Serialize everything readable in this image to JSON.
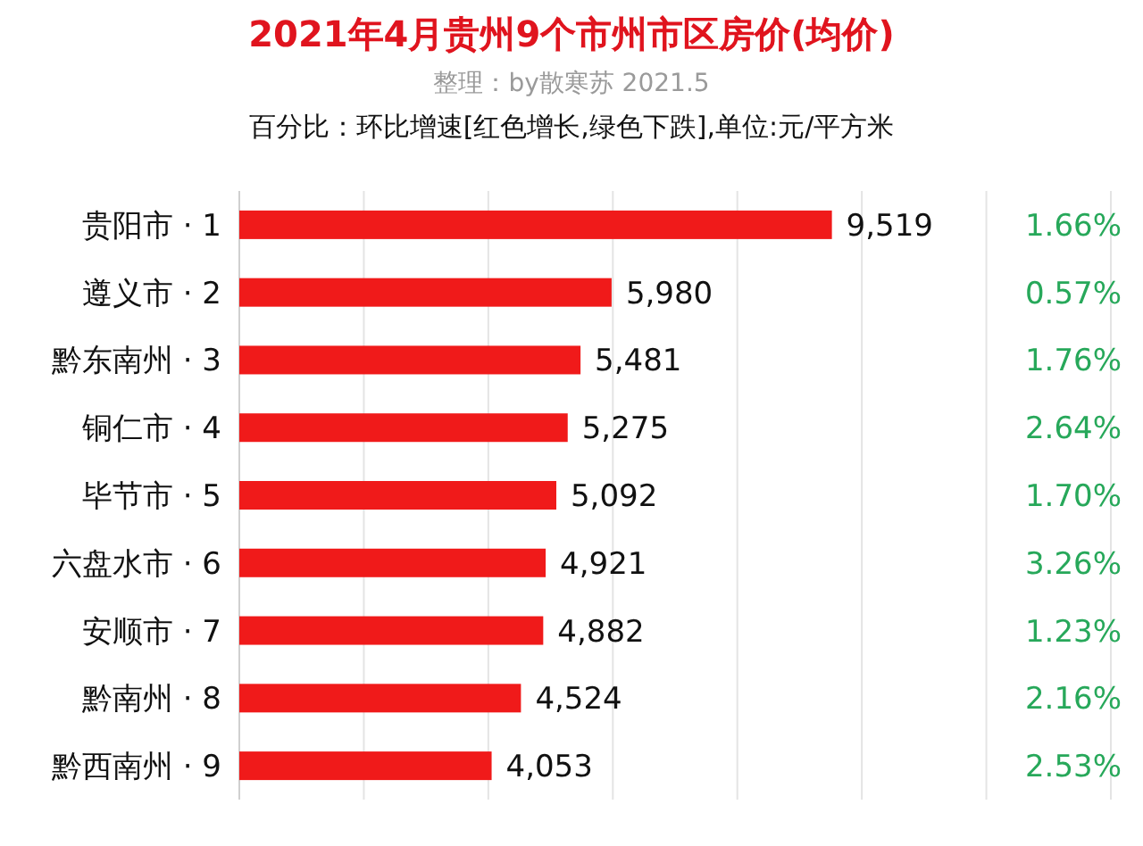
{
  "chart_data": {
    "type": "bar",
    "orientation": "horizontal",
    "title": "2021年4月贵州9个市州市区房价(均价)",
    "subtitle": "整理：by散寒苏 2021.5",
    "categories": [
      "贵阳市 · 1",
      "遵义市 · 2",
      "黔东南州 · 3",
      "铜仁市 · 4",
      "毕节市 · 5",
      "六盘水市 · 6",
      "安顺市 · 7",
      "黔南州 · 8",
      "黔西南州 · 9"
    ],
    "values": [
      9519,
      5980,
      5481,
      5275,
      5092,
      4921,
      4882,
      4524,
      4053
    ],
    "value_labels": [
      "9,519",
      "5,980",
      "5,481",
      "5,275",
      "5,092",
      "4,921",
      "4,882",
      "4,524",
      "4,053"
    ],
    "color": "#f01a1a",
    "xlim": [
      0,
      14000
    ],
    "xticks": [
      {
        "value": 0,
        "label": null
      },
      {
        "value": 2000,
        "label": null
      },
      {
        "value": 4000,
        "label": null
      },
      {
        "value": 6000,
        "label": null
      },
      {
        "value": 8000,
        "label": null
      },
      {
        "value": 10000,
        "label": null
      },
      {
        "value": 12000,
        "label": null
      },
      {
        "value": 14000,
        "label": null
      }
    ],
    "grid": "x",
    "tick_labels": "y",
    "annotations": [
      "百分比：环比增速[红色增长,绿色下跌],单位:元/平方米",
      "1.66%",
      "0.57%",
      "1.76%",
      "2.64%",
      "1.70%",
      "3.26%",
      "1.23%",
      "2.16%",
      "2.53%"
    ]
  }
}
